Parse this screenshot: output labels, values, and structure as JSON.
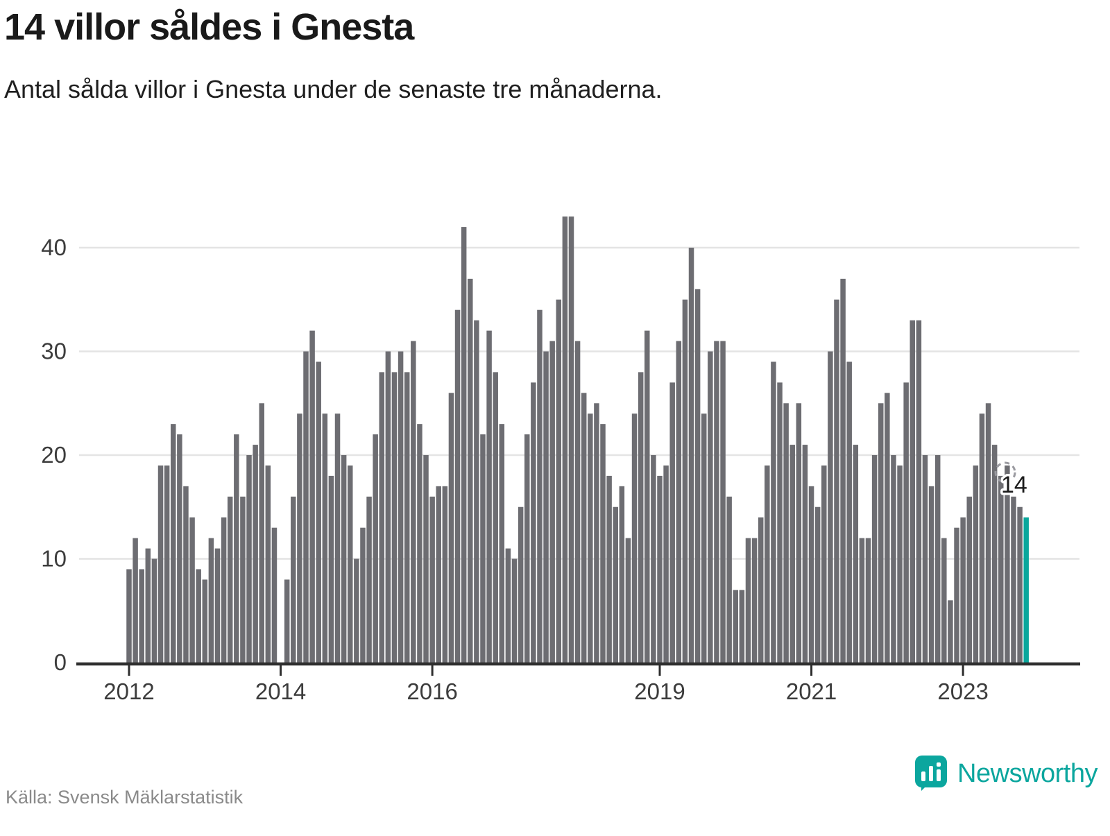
{
  "header": {
    "title": "14 villor såldes i Gnesta",
    "subtitle": "Antal sålda villor i Gnesta under de senaste tre månaderna."
  },
  "annotation": {
    "last_value_label": "14"
  },
  "footer": {
    "source": "Källa: Svensk Mäklarstatistik",
    "brand": "Newsworthy"
  },
  "chart_data": {
    "type": "bar",
    "title": "14 villor såldes i Gnesta",
    "subtitle": "Antal sålda villor i Gnesta under de senaste tre månaderna.",
    "x_monthly_start": "2012-01",
    "x_monthly_end": "2023-11",
    "values": [
      9,
      12,
      9,
      11,
      10,
      19,
      19,
      23,
      22,
      17,
      14,
      9,
      8,
      12,
      11,
      14,
      16,
      22,
      16,
      20,
      21,
      25,
      19,
      13,
      0,
      8,
      16,
      24,
      30,
      32,
      29,
      24,
      18,
      24,
      20,
      19,
      10,
      13,
      16,
      22,
      28,
      30,
      28,
      30,
      28,
      31,
      23,
      20,
      16,
      17,
      17,
      26,
      34,
      42,
      37,
      33,
      22,
      32,
      28,
      23,
      11,
      10,
      15,
      22,
      27,
      34,
      30,
      31,
      35,
      43,
      43,
      31,
      26,
      24,
      25,
      23,
      18,
      15,
      17,
      12,
      24,
      28,
      32,
      20,
      18,
      19,
      27,
      31,
      35,
      40,
      36,
      24,
      30,
      31,
      31,
      16,
      7,
      7,
      12,
      12,
      14,
      19,
      29,
      27,
      25,
      21,
      25,
      21,
      17,
      15,
      19,
      30,
      35,
      37,
      29,
      21,
      12,
      12,
      20,
      25,
      26,
      20,
      19,
      27,
      33,
      33,
      20,
      17,
      20,
      12,
      6,
      13,
      14,
      16,
      19,
      24,
      25,
      21,
      18,
      19,
      16,
      15,
      14
    ],
    "highlight_index": 142,
    "highlighted_value": 14,
    "ylim": [
      0,
      44
    ],
    "y_ticks": [
      0,
      10,
      20,
      30,
      40
    ],
    "x_tick_years": [
      "2012",
      "2014",
      "2016",
      "2019",
      "2021",
      "2023"
    ],
    "grid": "horizontal",
    "legend": "none",
    "bar_color": "#6d6d72",
    "highlight_color": "#0aa79c",
    "grid_color": "#e4e4e4",
    "axis_color": "#2e2e2e",
    "tick_label_color": "#3c3c3c"
  }
}
